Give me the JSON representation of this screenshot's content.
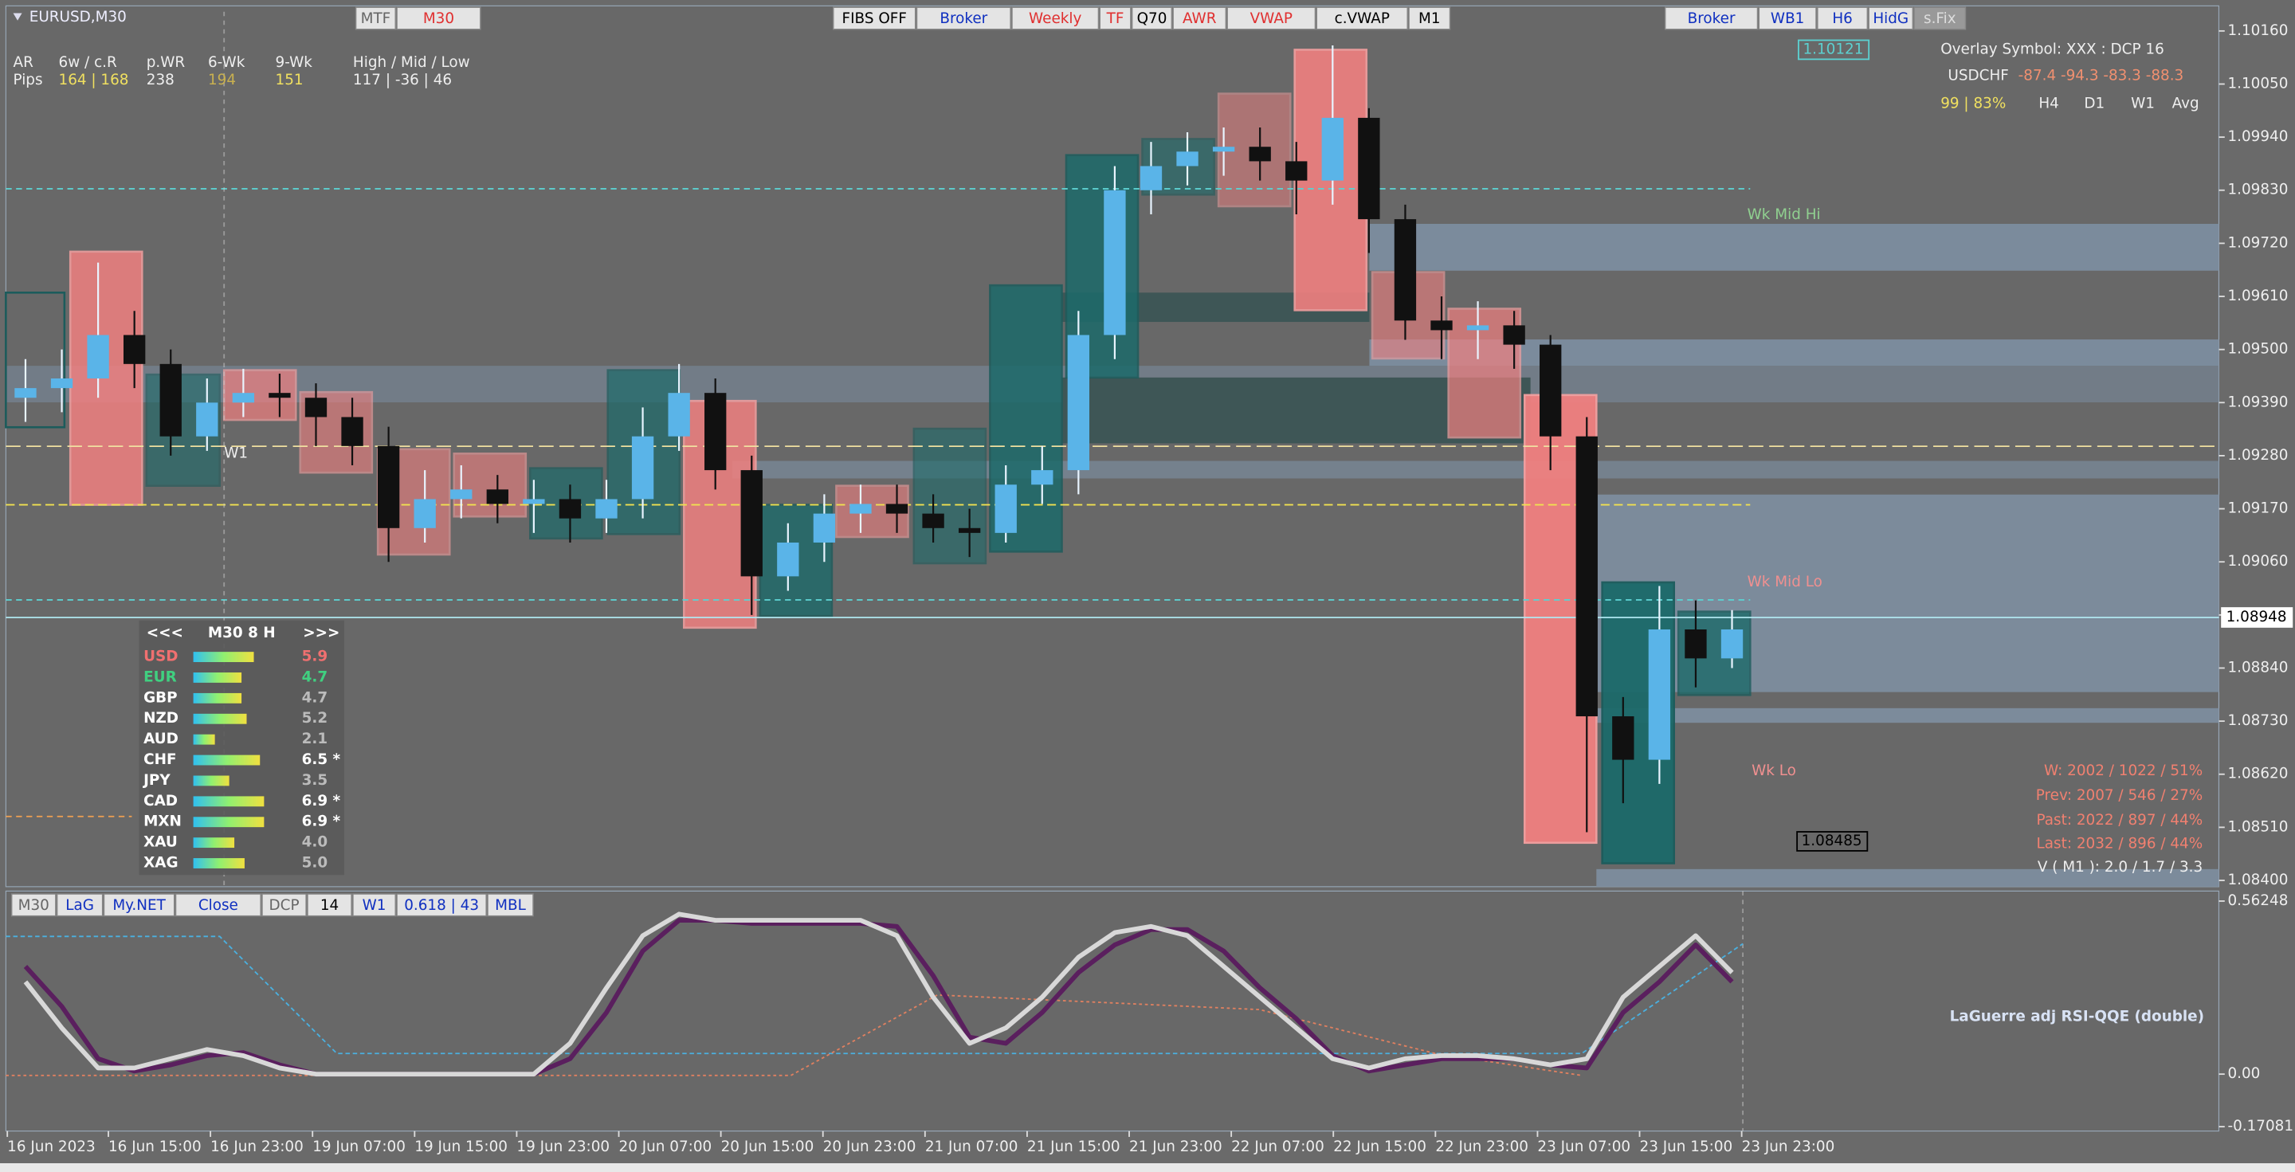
{
  "window_title": "EURUSD,M30",
  "toolbar_left": [
    "MTF",
    "M30"
  ],
  "toolbar_center": [
    "FIBS OFF",
    "Broker",
    "Weekly",
    "TF",
    "Q70",
    "AWR",
    "VWAP",
    "c.VWAP",
    "M1"
  ],
  "toolbar_right": [
    "Broker",
    "WB1",
    "H6",
    "HidG",
    "s.Fix"
  ],
  "stats": {
    "headers": [
      "AR",
      "6w / c.R",
      "p.WR",
      "6-Wk",
      "9-Wk",
      "High / Mid / Low"
    ],
    "row_label": "Pips",
    "values": [
      "164 | 168",
      "238",
      "194",
      "151",
      "117  |  -36  |  46"
    ]
  },
  "overlay": {
    "title": "Overlay Symbol: XXX : DCP 16",
    "symbol": "USDCHF",
    "values": "-87.4 -94.3 -83.3 -88.3",
    "score": "99 | 83%",
    "periods": [
      "H4",
      "D1",
      "W1",
      "Avg"
    ]
  },
  "price_labels": [
    "1.10121",
    "1.08948",
    "1.08485"
  ],
  "level_labels": [
    "Wk Mid Hi",
    "Wk Mid Lo",
    "Wk Lo",
    "W1"
  ],
  "stats_right": [
    "W: 2002 / 1022 / 51%",
    "Prev: 2007 / 546 / 27%",
    "Past: 2022 / 897 / 44%",
    "Last: 2032 / 896 / 44%",
    "V ( M1 ): 2.0 / 1.7 / 3.3"
  ],
  "strength": {
    "header": [
      "<<<",
      "M30  8  H",
      ">>>"
    ],
    "rows": [
      [
        "USD",
        "5.9"
      ],
      [
        "EUR",
        "4.7"
      ],
      [
        "GBP",
        "4.7"
      ],
      [
        "NZD",
        "5.2"
      ],
      [
        "AUD",
        "2.1"
      ],
      [
        "CHF",
        "6.5 *"
      ],
      [
        "JPY",
        "3.5"
      ],
      [
        "CAD",
        "6.9 *"
      ],
      [
        "MXN",
        "6.9 *"
      ],
      [
        "XAU",
        "4.0"
      ],
      [
        "XAG",
        "5.0"
      ]
    ]
  },
  "indicator_buttons": [
    "M30",
    "LaG",
    "My.NET",
    "Close",
    "DCP",
    "14",
    "W1",
    "0.618 | 43",
    "MBL"
  ],
  "indicator_title": "LaGuerre adj RSI-QQE (double)",
  "chart_data": [
    {
      "type": "candlestick",
      "x_labels": [
        "16 Jun 2023",
        "16 Jun 15:00",
        "16 Jun 23:00",
        "19 Jun 07:00",
        "19 Jun 15:00",
        "19 Jun 23:00",
        "20 Jun 07:00",
        "20 Jun 15:00",
        "20 Jun 23:00",
        "21 Jun 07:00",
        "21 Jun 15:00",
        "21 Jun 23:00",
        "22 Jun 07:00",
        "22 Jun 15:00",
        "22 Jun 23:00",
        "23 Jun 07:00",
        "23 Jun 15:00",
        "23 Jun 23:00"
      ],
      "open": [
        1.094,
        1.0942,
        1.0944,
        1.0953,
        1.0947,
        1.0932,
        1.0939,
        1.0941,
        1.094,
        1.0936,
        1.093,
        1.0913,
        1.0919,
        1.0921,
        1.0918,
        1.0919,
        1.0915,
        1.0919,
        1.0932,
        1.0941,
        1.0925,
        1.0903,
        1.091,
        1.0916,
        1.0918,
        1.0916,
        1.0913,
        1.0912,
        1.0922,
        1.0925,
        1.0953,
        1.0983,
        1.0988,
        1.0991,
        1.0992,
        1.0989,
        1.0985,
        1.0998,
        1.0977,
        1.0956,
        1.0954,
        1.0955,
        1.0951,
        1.0932,
        1.0874,
        1.0865,
        1.0892,
        1.0886
      ],
      "high": [
        1.0948,
        1.095,
        1.0968,
        1.0958,
        1.095,
        1.0944,
        1.0946,
        1.0945,
        1.0943,
        1.094,
        1.0934,
        1.0925,
        1.0926,
        1.0924,
        1.0923,
        1.0922,
        1.0923,
        1.0938,
        1.0947,
        1.0944,
        1.0928,
        1.0914,
        1.092,
        1.0922,
        1.0922,
        1.092,
        1.0917,
        1.0926,
        1.093,
        1.0958,
        1.0988,
        1.0993,
        1.0995,
        1.0996,
        1.0996,
        1.0993,
        1.1013,
        1.1,
        1.098,
        1.0961,
        1.096,
        1.0958,
        1.0953,
        1.0936,
        1.0878,
        1.0901,
        1.0898,
        1.0896
      ],
      "low": [
        1.0935,
        1.0937,
        1.094,
        1.0942,
        1.0928,
        1.0929,
        1.0936,
        1.0936,
        1.093,
        1.0926,
        1.0906,
        1.091,
        1.0915,
        1.0914,
        1.0912,
        1.091,
        1.0912,
        1.0915,
        1.0929,
        1.0921,
        1.0895,
        1.09,
        1.0906,
        1.0912,
        1.0912,
        1.091,
        1.0907,
        1.091,
        1.0918,
        1.092,
        1.0948,
        1.0978,
        1.0984,
        1.0986,
        1.0985,
        1.0978,
        1.098,
        1.097,
        1.0952,
        1.0948,
        1.0948,
        1.0946,
        1.0925,
        1.085,
        1.0856,
        1.086,
        1.088,
        1.0884
      ],
      "close": [
        1.0942,
        1.0944,
        1.0953,
        1.0947,
        1.0932,
        1.0939,
        1.0941,
        1.094,
        1.0936,
        1.093,
        1.0913,
        1.0919,
        1.0921,
        1.0918,
        1.0919,
        1.0915,
        1.0919,
        1.0932,
        1.0941,
        1.0925,
        1.0903,
        1.091,
        1.0916,
        1.0918,
        1.0916,
        1.0913,
        1.0912,
        1.0922,
        1.0925,
        1.0953,
        1.0983,
        1.0988,
        1.0991,
        1.0992,
        1.0989,
        1.0985,
        1.0998,
        1.0977,
        1.0956,
        1.0954,
        1.0955,
        1.0951,
        1.0932,
        1.0874,
        1.0865,
        1.0892,
        1.0886,
        1.0892
      ],
      "up_color": "#5ab4e8",
      "down_color": "#111111",
      "ylim": [
        1.08387,
        1.10212
      ],
      "yticks": [
        {
          "value": 1.1016,
          "label": "1.10160"
        },
        {
          "value": 1.1005,
          "label": "1.10050"
        },
        {
          "value": 1.0994,
          "label": "1.09940"
        },
        {
          "value": 1.0983,
          "label": "1.09830"
        },
        {
          "value": 1.0972,
          "label": "1.09720"
        },
        {
          "value": 1.0961,
          "label": "1.09610"
        },
        {
          "value": 1.095,
          "label": "1.09500"
        },
        {
          "value": 1.0939,
          "label": "1.09390"
        },
        {
          "value": 1.0928,
          "label": "1.09280"
        },
        {
          "value": 1.0917,
          "label": "1.09170"
        },
        {
          "value": 1.0906,
          "label": "1.09060"
        },
        {
          "value": 1.0895,
          "label": "1.08950"
        },
        {
          "value": 1.0884,
          "label": "1.08840"
        },
        {
          "value": 1.0873,
          "label": "1.08730"
        },
        {
          "value": 1.0862,
          "label": "1.08620"
        },
        {
          "value": 1.0851,
          "label": "1.08510"
        },
        {
          "value": 1.084,
          "label": "1.08400"
        }
      ]
    },
    {
      "type": "line",
      "series": [
        {
          "color": "#d8d8d8",
          "values": [
            0.3,
            0.15,
            0.02,
            0.02,
            0.05,
            0.08,
            0.06,
            0.02,
            0,
            0,
            0,
            0,
            0,
            0,
            0,
            0.1,
            0.28,
            0.45,
            0.52,
            0.5,
            0.5,
            0.5,
            0.5,
            0.5,
            0.45,
            0.25,
            0.1,
            0.15,
            0.25,
            0.38,
            0.46,
            0.48,
            0.45,
            0.35,
            0.25,
            0.15,
            0.05,
            0.02,
            0.05,
            0.06,
            0.06,
            0.05,
            0.03,
            0.05,
            0.25,
            0.35,
            0.45,
            0.33
          ]
        },
        {
          "color": "#5a1f5e",
          "values": [
            0.35,
            0.22,
            0.05,
            0.01,
            0.03,
            0.06,
            0.07,
            0.03,
            0,
            0,
            0,
            0,
            0,
            0,
            0,
            0.05,
            0.2,
            0.4,
            0.5,
            0.5,
            0.49,
            0.49,
            0.49,
            0.49,
            0.48,
            0.32,
            0.12,
            0.1,
            0.2,
            0.33,
            0.42,
            0.47,
            0.47,
            0.4,
            0.28,
            0.18,
            0.06,
            0.01,
            0.03,
            0.05,
            0.05,
            0.05,
            0.03,
            0.02,
            0.2,
            0.3,
            0.42,
            0.3
          ]
        }
      ],
      "ylim": [
        -0.185,
        0.595
      ],
      "yticks": [
        0.56248,
        {
          "value": 0,
          "label": "0.00"
        },
        -0.17081
      ]
    }
  ]
}
